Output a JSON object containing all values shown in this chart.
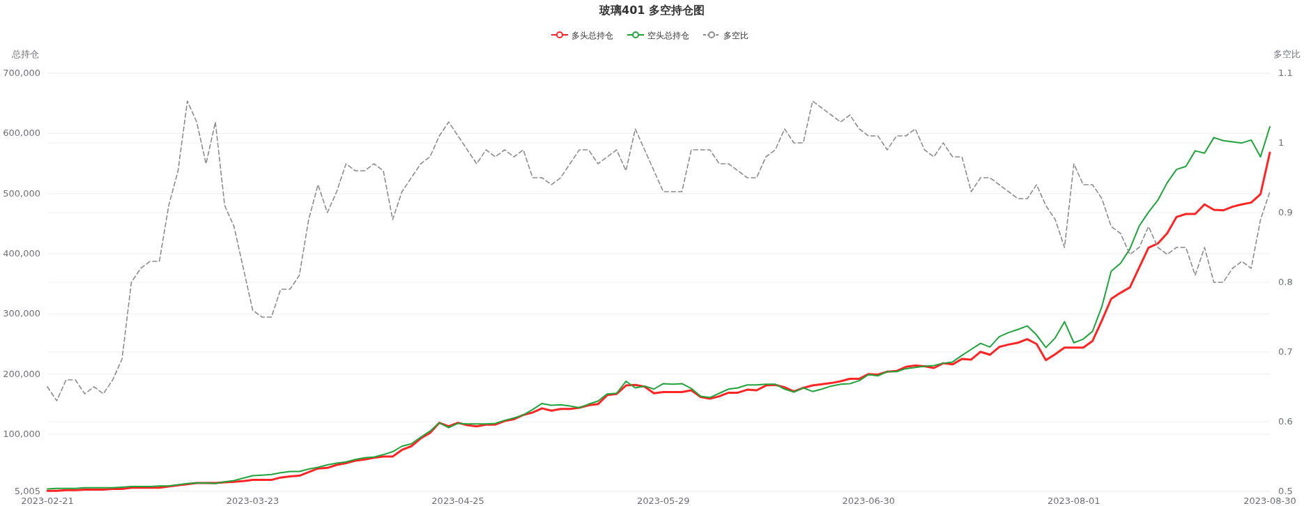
{
  "chart_data": {
    "type": "line",
    "title": "玻璃401 多空持仓图",
    "ylabel": "总持仓",
    "y2label": "多空比",
    "legend": "top",
    "grid": true,
    "marker": "none",
    "categories": [
      "2023-02-21",
      null,
      null,
      null,
      null,
      null,
      null,
      null,
      null,
      null,
      null,
      null,
      null,
      null,
      null,
      null,
      null,
      null,
      null,
      null,
      null,
      null,
      "2023-03-23",
      null,
      null,
      null,
      null,
      null,
      null,
      null,
      null,
      null,
      null,
      null,
      null,
      null,
      null,
      null,
      null,
      null,
      null,
      null,
      null,
      null,
      "2023-04-25",
      null,
      null,
      null,
      null,
      null,
      null,
      null,
      null,
      null,
      null,
      null,
      null,
      null,
      null,
      null,
      null,
      null,
      null,
      null,
      null,
      null,
      "2023-05-29",
      null,
      null,
      null,
      null,
      null,
      null,
      null,
      null,
      null,
      null,
      null,
      null,
      null,
      null,
      null,
      null,
      null,
      null,
      null,
      null,
      null,
      "2023-06-30",
      null,
      null,
      null,
      null,
      null,
      null,
      null,
      null,
      null,
      null,
      null,
      null,
      null,
      null,
      null,
      null,
      null,
      null,
      null,
      null,
      null,
      "2023-08-01",
      null,
      null,
      null,
      null,
      null,
      null,
      null,
      null,
      null,
      null,
      null,
      null,
      null,
      null,
      null,
      null,
      null,
      null,
      null,
      null,
      "2023-08-30"
    ],
    "ylim": [
      5005,
      700000
    ],
    "yticks": [
      {
        "value": 5005,
        "label": "5,005"
      },
      {
        "value": 100000,
        "label": "100,000"
      },
      {
        "value": 200000,
        "label": "200,000"
      },
      {
        "value": 300000,
        "label": "300,000"
      },
      {
        "value": 400000,
        "label": "400,000"
      },
      {
        "value": 500000,
        "label": "500,000"
      },
      {
        "value": 600000,
        "label": "600,000"
      },
      {
        "value": 700000,
        "label": "700,000"
      }
    ],
    "y2lim": [
      0.5,
      1.1
    ],
    "y2ticks": [
      0.5,
      0.6,
      0.7,
      0.8,
      0.9,
      1,
      1.1
    ],
    "series": [
      {
        "name": "多头总持仓",
        "color": "#ff2424",
        "values": [
          6000,
          6000,
          7000,
          7000,
          8000,
          8000,
          8000,
          9000,
          9000,
          11000,
          11000,
          11000,
          11000,
          13000,
          15000,
          17000,
          19000,
          19000,
          19000,
          20000,
          21000,
          22000,
          24000,
          24000,
          24000,
          28000,
          30000,
          31000,
          37000,
          43000,
          44000,
          49000,
          52000,
          56000,
          58000,
          61000,
          63000,
          63000,
          74000,
          80000,
          93000,
          102000,
          119000,
          113000,
          119000,
          115000,
          113000,
          116000,
          116000,
          122000,
          125000,
          132000,
          136000,
          143000,
          139000,
          142000,
          142000,
          144000,
          148000,
          150000,
          165000,
          167000,
          181000,
          182000,
          179000,
          168000,
          170000,
          170000,
          170000,
          173000,
          162000,
          159000,
          163000,
          169000,
          169000,
          174000,
          173000,
          181000,
          182000,
          178000,
          171000,
          177000,
          181000,
          183000,
          185000,
          188000,
          192000,
          192000,
          200000,
          199000,
          204000,
          205000,
          212000,
          214000,
          213000,
          210000,
          218000,
          216000,
          225000,
          224000,
          237000,
          232000,
          245000,
          249000,
          252000,
          258000,
          250000,
          223000,
          233000,
          244000,
          244000,
          244000,
          255000,
          289000,
          325000,
          335000,
          344000,
          377000,
          410000,
          417000,
          434000,
          461000,
          466000,
          466000,
          482000,
          473000,
          472000,
          478000,
          482000,
          485000,
          499000,
          568000
        ]
      },
      {
        "name": "空头总持仓",
        "color": "#1fa33a",
        "values": [
          9000,
          10000,
          10000,
          10000,
          11000,
          11000,
          11000,
          11000,
          12000,
          13000,
          13000,
          13000,
          14000,
          14000,
          16000,
          18000,
          19000,
          19000,
          18000,
          21000,
          23000,
          27000,
          31000,
          32000,
          33000,
          36000,
          38000,
          38000,
          42000,
          45000,
          49000,
          52000,
          54000,
          58000,
          61000,
          62000,
          66000,
          71000,
          80000,
          84000,
          95000,
          105000,
          119000,
          111000,
          118000,
          117000,
          117000,
          117000,
          118000,
          123000,
          127000,
          132000,
          141000,
          151000,
          148000,
          149000,
          147000,
          144000,
          150000,
          155000,
          167000,
          168000,
          188000,
          177000,
          180000,
          175000,
          184000,
          183000,
          184000,
          176000,
          163000,
          161000,
          168000,
          175000,
          177000,
          182000,
          182000,
          183000,
          183000,
          175000,
          170000,
          177000,
          171000,
          175000,
          180000,
          183000,
          184000,
          189000,
          199000,
          197000,
          204000,
          204000,
          209000,
          211000,
          213000,
          214000,
          218000,
          220000,
          231000,
          241000,
          251000,
          245000,
          262000,
          269000,
          274000,
          280000,
          265000,
          244000,
          260000,
          287000,
          252000,
          258000,
          271000,
          312000,
          371000,
          384000,
          408000,
          446000,
          469000,
          489000,
          518000,
          540000,
          545000,
          571000,
          567000,
          593000,
          588000,
          586000,
          584000,
          589000,
          561000,
          611000
        ]
      },
      {
        "name": "多空比",
        "color": "#8c8c8c",
        "axis": "y2",
        "line_style": "dashed",
        "values": [
          0.65,
          0.63,
          0.66,
          0.66,
          0.64,
          0.65,
          0.64,
          0.66,
          0.69,
          0.8,
          0.82,
          0.83,
          0.83,
          0.91,
          0.96,
          1.06,
          1.03,
          0.97,
          1.03,
          0.91,
          0.88,
          0.82,
          0.76,
          0.75,
          0.75,
          0.79,
          0.79,
          0.81,
          0.89,
          0.94,
          0.9,
          0.93,
          0.97,
          0.96,
          0.96,
          0.97,
          0.96,
          0.89,
          0.93,
          0.95,
          0.97,
          0.98,
          1.01,
          1.03,
          1.01,
          0.99,
          0.97,
          0.99,
          0.98,
          0.99,
          0.98,
          0.99,
          0.95,
          0.95,
          0.94,
          0.95,
          0.97,
          0.99,
          0.99,
          0.97,
          0.98,
          0.99,
          0.96,
          1.02,
          0.99,
          0.96,
          0.93,
          0.93,
          0.93,
          0.99,
          0.99,
          0.99,
          0.97,
          0.97,
          0.96,
          0.95,
          0.95,
          0.98,
          0.99,
          1.02,
          1.0,
          1.0,
          1.06,
          1.05,
          1.04,
          1.03,
          1.04,
          1.02,
          1.01,
          1.01,
          0.99,
          1.01,
          1.01,
          1.02,
          0.99,
          0.98,
          1.0,
          0.98,
          0.98,
          0.93,
          0.95,
          0.95,
          0.94,
          0.93,
          0.92,
          0.92,
          0.94,
          0.91,
          0.89,
          0.85,
          0.97,
          0.94,
          0.94,
          0.92,
          0.88,
          0.87,
          0.84,
          0.85,
          0.88,
          0.85,
          0.84,
          0.85,
          0.85,
          0.81,
          0.85,
          0.8,
          0.8,
          0.82,
          0.83,
          0.82,
          0.89,
          0.93
        ]
      }
    ]
  }
}
